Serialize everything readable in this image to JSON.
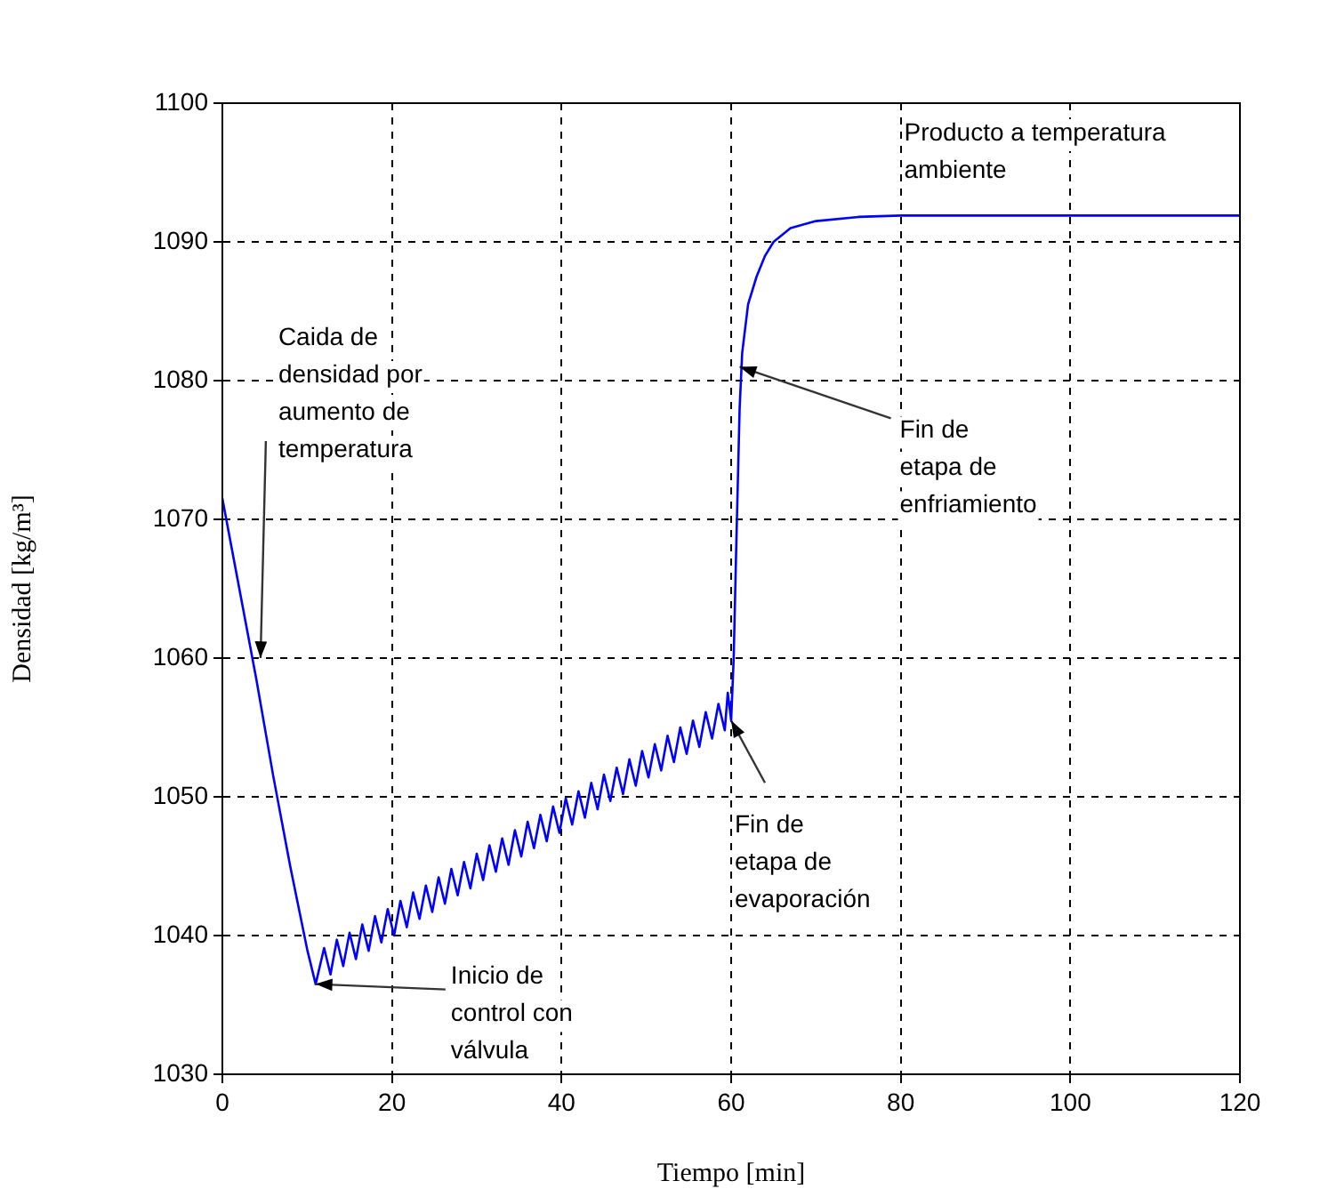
{
  "chart_data": {
    "type": "line",
    "xlabel": "Tiempo [min]",
    "ylabel": "Densidad [kg/m³]",
    "xlim": [
      0,
      120
    ],
    "xticks": [
      0,
      20,
      40,
      60,
      80,
      100,
      120
    ],
    "ylim": [
      1030,
      1100
    ],
    "yticks": [
      1030,
      1040,
      1050,
      1060,
      1070,
      1080,
      1090,
      1100
    ],
    "grid": true,
    "marker": "none",
    "line_style": "solid",
    "series": [
      {
        "color": "#0000ff",
        "x": [
          0,
          2,
          4,
          6,
          8,
          10,
          11,
          12,
          12.75,
          13.5,
          14.25,
          15,
          15.75,
          16.5,
          17.25,
          18,
          18.75,
          19.5,
          20.25,
          21,
          21.75,
          22.5,
          23.25,
          24,
          24.75,
          25.5,
          26.25,
          27,
          27.75,
          28.5,
          29.25,
          30,
          30.75,
          31.5,
          32.25,
          33,
          33.75,
          34.5,
          35.25,
          36,
          36.75,
          37.5,
          38.25,
          39,
          39.75,
          40.5,
          41.25,
          42,
          42.75,
          43.5,
          44.25,
          45,
          45.75,
          46.5,
          47.25,
          48,
          48.75,
          49.5,
          50.25,
          51,
          51.75,
          52.5,
          53.25,
          54,
          54.75,
          55.5,
          56.25,
          57,
          57.75,
          58.5,
          59.25,
          59.6,
          60,
          60.3,
          60.6,
          61,
          61.3,
          62,
          63,
          64,
          65,
          67,
          70,
          75,
          80,
          120
        ],
        "values": [
          1071.5,
          1065,
          1058.5,
          1051.5,
          1045,
          1039,
          1036.5,
          1039.1,
          1037.2,
          1039.7,
          1037.8,
          1040.2,
          1038.3,
          1040.8,
          1038.9,
          1041.4,
          1039.5,
          1041.9,
          1040.0,
          1042.5,
          1040.6,
          1043.1,
          1041.2,
          1043.6,
          1041.7,
          1044.2,
          1042.3,
          1044.8,
          1042.9,
          1045.3,
          1043.4,
          1045.9,
          1044.0,
          1046.5,
          1044.6,
          1047.0,
          1045.1,
          1047.6,
          1045.7,
          1048.2,
          1046.3,
          1048.7,
          1046.8,
          1049.3,
          1047.4,
          1049.9,
          1048.0,
          1050.4,
          1048.5,
          1051.0,
          1049.1,
          1051.6,
          1049.7,
          1052.1,
          1050.2,
          1052.7,
          1050.8,
          1053.3,
          1051.4,
          1053.8,
          1051.9,
          1054.4,
          1052.5,
          1055.0,
          1053.1,
          1055.5,
          1053.6,
          1056.1,
          1054.2,
          1056.7,
          1054.8,
          1057.5,
          1055.5,
          1060,
          1068,
          1078,
          1082,
          1085.5,
          1087.5,
          1089,
          1090,
          1091,
          1091.5,
          1091.8,
          1091.9,
          1091.9
        ]
      }
    ],
    "annotations": [
      {
        "text": "Caida de\ndensidad por\naumento de\ntemperatura",
        "x": 4.5,
        "y": 1060
      },
      {
        "text": "Inicio de\ncontrol con\nválvula",
        "x": 11,
        "y": 1036.5
      },
      {
        "text": "Fin de\netapa de\nevaporación",
        "x": 60,
        "y": 1055.5
      },
      {
        "text": "Fin de\netapa de\nenfriamiento",
        "x": 61,
        "y": 1081
      },
      "Producto a temperatura\nambiente"
    ]
  }
}
